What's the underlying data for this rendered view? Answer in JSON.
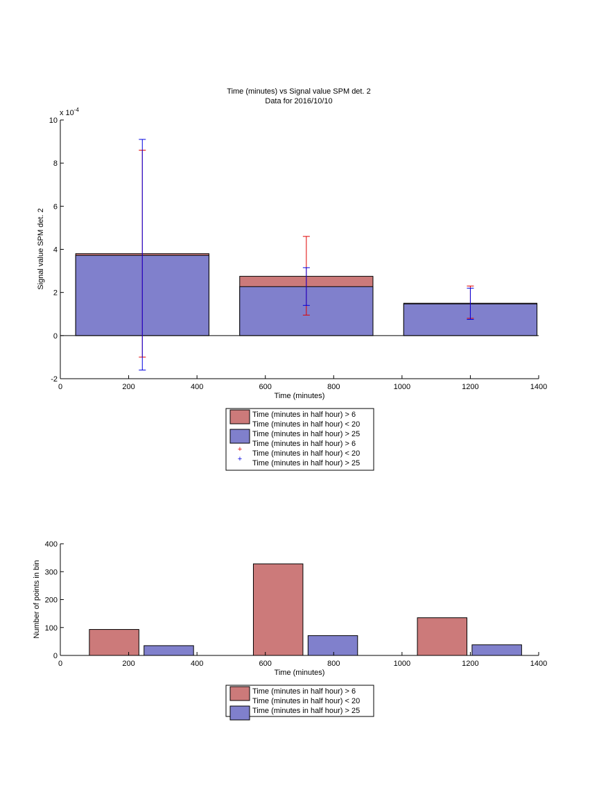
{
  "colors": {
    "red": "#cc7a7a",
    "blue": "#8080cc",
    "red_err": "#e00000",
    "blue_err": "#0000e0"
  },
  "chart_data": [
    {
      "type": "bar",
      "title": "Time (minutes) vs Signal value SPM det. 2",
      "subtitle": "Data for 2016/10/10",
      "xlabel": "Time (minutes)",
      "ylabel": "Signal value SPM det. 2",
      "y_exponent": "x 10",
      "y_exponent_power": "-4",
      "xlim": [
        0,
        1400
      ],
      "ylim": [
        -2,
        10
      ],
      "xticks": [
        "0",
        "200",
        "400",
        "600",
        "800",
        "1000",
        "1200",
        "1400"
      ],
      "yticks": [
        "-2",
        "0",
        "2",
        "4",
        "6",
        "8",
        "10"
      ],
      "bins": [
        {
          "x0": 45,
          "x1": 435,
          "center": 240
        },
        {
          "x0": 525,
          "x1": 915,
          "center": 720
        },
        {
          "x0": 1005,
          "x1": 1395,
          "center": 1200
        }
      ],
      "series": [
        {
          "name": "Time (minutes in half hour) > 6\nTime (minutes in half hour) < 20",
          "color": "red",
          "values": [
            3.8,
            2.75,
            1.5
          ]
        },
        {
          "name": "Time (minutes in half hour) > 25",
          "color": "blue",
          "values": [
            3.72,
            2.27,
            1.47
          ]
        }
      ],
      "error_bars": [
        {
          "name": "Time (minutes in half hour) > 6\nTime (minutes in half hour) < 20",
          "color": "red_err",
          "x": [
            240,
            720,
            1200
          ],
          "low": [
            -1.0,
            0.95,
            0.8
          ],
          "high": [
            8.6,
            4.6,
            2.3
          ]
        },
        {
          "name": "Time (minutes in half hour) > 25",
          "color": "blue_err",
          "x": [
            240,
            720,
            1200
          ],
          "low": [
            -1.6,
            1.4,
            0.75
          ],
          "high": [
            9.1,
            3.15,
            2.2
          ]
        }
      ],
      "legend": {
        "position": "below",
        "entries": [
          {
            "kind": "patch",
            "color": "red",
            "lines": [
              "Time (minutes in half hour) > 6",
              "Time (minutes in half hour) < 20"
            ]
          },
          {
            "kind": "patch",
            "color": "blue",
            "lines": [
              "Time (minutes in half hour) > 25"
            ]
          },
          {
            "kind": "marker",
            "color": "red_err",
            "lines": [
              "Time (minutes in half hour) > 6",
              "Time (minutes in half hour) < 20"
            ]
          },
          {
            "kind": "marker",
            "color": "blue_err",
            "lines": [
              "Time (minutes in half hour) > 25"
            ]
          }
        ]
      },
      "grid": false
    },
    {
      "type": "bar",
      "title": "",
      "xlabel": "Time (minutes)",
      "ylabel": "Number of points in bin",
      "xlim": [
        0,
        1400
      ],
      "ylim": [
        0,
        400
      ],
      "xticks": [
        "0",
        "200",
        "400",
        "600",
        "800",
        "1000",
        "1200",
        "1400"
      ],
      "yticks": [
        "0",
        "100",
        "200",
        "300",
        "400"
      ],
      "bars": [
        {
          "x0": 85,
          "x1": 230,
          "value": 93,
          "color": "red"
        },
        {
          "x0": 245,
          "x1": 390,
          "value": 35,
          "color": "blue"
        },
        {
          "x0": 565,
          "x1": 710,
          "value": 328,
          "color": "red"
        },
        {
          "x0": 725,
          "x1": 870,
          "value": 71,
          "color": "blue"
        },
        {
          "x0": 1045,
          "x1": 1190,
          "value": 135,
          "color": "red"
        },
        {
          "x0": 1205,
          "x1": 1350,
          "value": 38,
          "color": "blue"
        }
      ],
      "legend": {
        "position": "below",
        "entries": [
          {
            "kind": "patch",
            "color": "red",
            "lines": [
              "Time (minutes in half hour) > 6",
              "Time (minutes in half hour) < 20"
            ]
          },
          {
            "kind": "patch",
            "color": "blue",
            "lines": [
              "Time (minutes in half hour) > 25"
            ]
          }
        ]
      },
      "grid": false
    }
  ]
}
